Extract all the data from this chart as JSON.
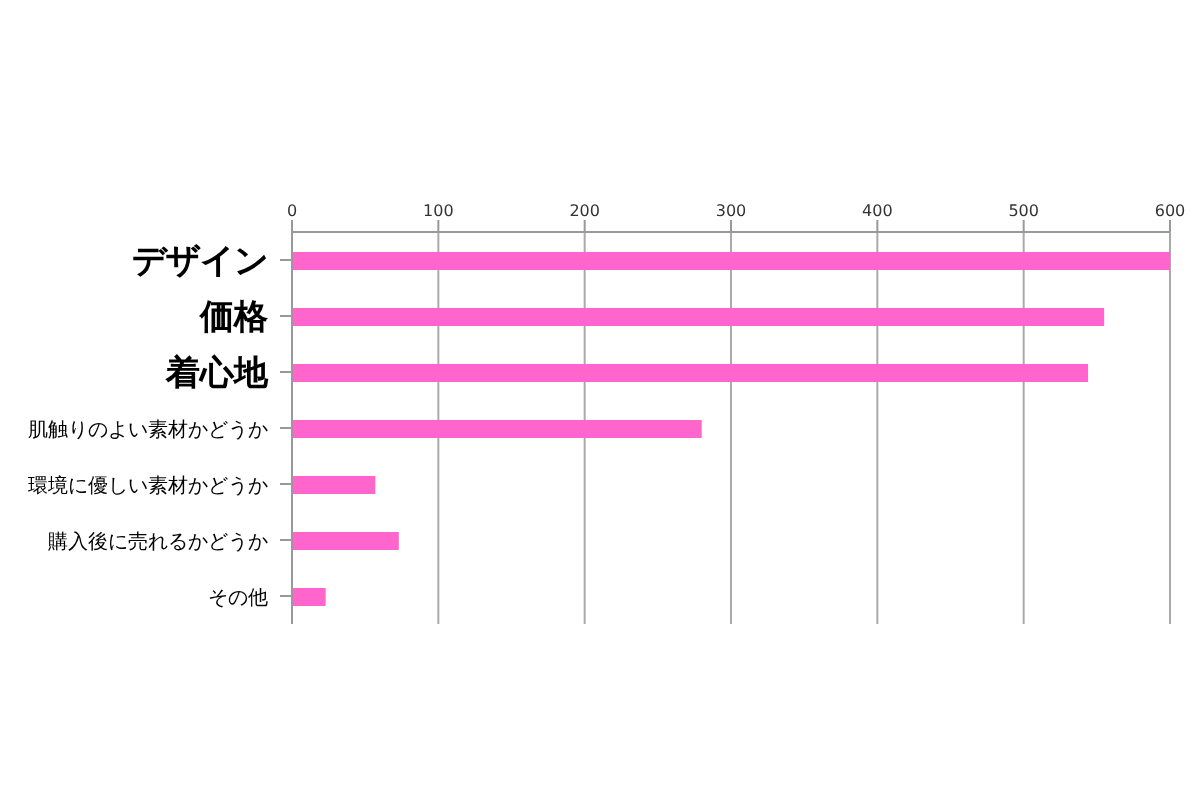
{
  "chart_data": {
    "type": "bar",
    "orientation": "horizontal",
    "categories": [
      "デザイン",
      "価格",
      "着心地",
      "肌触りのよい素材かどうか",
      "環境に優しい素材かどうか",
      "購入後に売れるかどうか",
      "その他"
    ],
    "values": [
      600,
      555,
      544,
      280,
      57,
      73,
      23
    ],
    "color": "#ff66cc",
    "xlim": [
      0,
      600
    ],
    "xticks": [
      0,
      100,
      200,
      300,
      400,
      500,
      600
    ],
    "grid": "x"
  }
}
